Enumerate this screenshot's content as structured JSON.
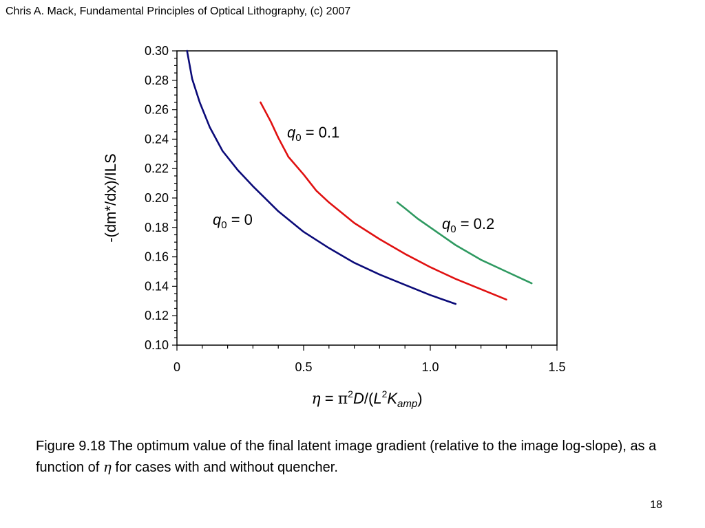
{
  "slide": {
    "header": "Chris A. Mack, Fundamental Principles of Optical Lithography, (c) 2007",
    "caption_before": "Figure 9.18  The optimum value of the final latent image gradient (relative to the image log-slope), as a function of ",
    "caption_symbol": "η",
    "caption_after": " for cases with and without quencher.",
    "page_number": "18"
  },
  "chart_data": {
    "type": "line",
    "title": "",
    "xlabel": "η = π²D/(L²K_amp)",
    "ylabel": "-(dm*/dx)/ILS",
    "xlim": [
      0,
      1.5
    ],
    "ylim": [
      0.1,
      0.3
    ],
    "x_ticks": [
      "0",
      "0.5",
      "1.0",
      "1.5"
    ],
    "y_ticks": [
      "0.10",
      "0.12",
      "0.14",
      "0.16",
      "0.18",
      "0.20",
      "0.22",
      "0.24",
      "0.26",
      "0.28",
      "0.30"
    ],
    "grid": false,
    "series": [
      {
        "name": "q0 = 0",
        "label_var": "q",
        "label_sub": "0",
        "label_rest": " = 0",
        "color": "#0a0a78",
        "x": [
          0.04,
          0.06,
          0.09,
          0.13,
          0.18,
          0.24,
          0.3,
          0.4,
          0.5,
          0.6,
          0.7,
          0.8,
          0.9,
          1.0,
          1.1
        ],
        "y": [
          0.3,
          0.281,
          0.265,
          0.248,
          0.232,
          0.219,
          0.208,
          0.191,
          0.177,
          0.166,
          0.156,
          0.148,
          0.141,
          0.134,
          0.128
        ]
      },
      {
        "name": "q0 = 0.1",
        "label_var": "q",
        "label_sub": "0",
        "label_rest": " = 0.1",
        "color": "#e01010",
        "x": [
          0.33,
          0.37,
          0.4,
          0.44,
          0.5,
          0.55,
          0.6,
          0.7,
          0.8,
          0.9,
          1.0,
          1.1,
          1.2,
          1.3
        ],
        "y": [
          0.265,
          0.252,
          0.241,
          0.228,
          0.216,
          0.205,
          0.197,
          0.183,
          0.172,
          0.162,
          0.153,
          0.145,
          0.138,
          0.131
        ]
      },
      {
        "name": "q0 = 0.2",
        "label_var": "q",
        "label_sub": "0",
        "label_rest": " = 0.2",
        "color": "#2e9960",
        "x": [
          0.87,
          0.9,
          0.95,
          1.0,
          1.1,
          1.2,
          1.3,
          1.4
        ],
        "y": [
          0.197,
          0.193,
          0.186,
          0.18,
          0.168,
          0.158,
          0.15,
          0.142
        ]
      }
    ]
  }
}
